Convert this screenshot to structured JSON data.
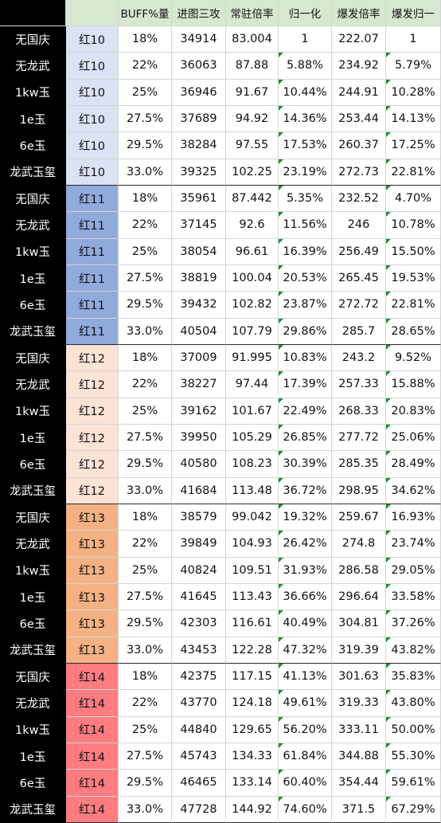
{
  "headers": [
    "",
    "",
    "BUFF%量",
    "进图三攻",
    "常驻倍率",
    "归一化",
    "爆发倍率",
    "爆发归一"
  ],
  "tier_colors": {
    "红10": "#dae2f3",
    "红11": "#8faadb",
    "红12": "#fbe3d6",
    "红13": "#f4b183",
    "红14": "#ff7c80"
  },
  "header_color": "#d6e9cf",
  "rows": [
    {
      "label": "无国庆",
      "tier": "红10",
      "buff": "18%",
      "atk": "34914",
      "base": "83.004",
      "norm": "1",
      "burst": "222.07",
      "burst_norm": "1"
    },
    {
      "label": "无龙武",
      "tier": "红10",
      "buff": "22%",
      "atk": "36063",
      "base": "87.88",
      "norm": "5.88%",
      "burst": "234.92",
      "burst_norm": "5.79%"
    },
    {
      "label": "1kw玉",
      "tier": "红10",
      "buff": "25%",
      "atk": "36946",
      "base": "91.67",
      "norm": "10.44%",
      "burst": "244.91",
      "burst_norm": "10.28%"
    },
    {
      "label": "1e玉",
      "tier": "红10",
      "buff": "27.5%",
      "atk": "37689",
      "base": "94.92",
      "norm": "14.36%",
      "burst": "253.44",
      "burst_norm": "14.13%"
    },
    {
      "label": "6e玉",
      "tier": "红10",
      "buff": "29.5%",
      "atk": "38284",
      "base": "97.55",
      "norm": "17.53%",
      "burst": "260.37",
      "burst_norm": "17.25%"
    },
    {
      "label": "龙武玉玺",
      "tier": "红10",
      "buff": "33.0%",
      "atk": "39325",
      "base": "102.25",
      "norm": "23.19%",
      "burst": "272.73",
      "burst_norm": "22.81%"
    },
    {
      "label": "无国庆",
      "tier": "红11",
      "buff": "18%",
      "atk": "35961",
      "base": "87.442",
      "norm": "5.35%",
      "burst": "232.52",
      "burst_norm": "4.70%"
    },
    {
      "label": "无龙武",
      "tier": "红11",
      "buff": "22%",
      "atk": "37145",
      "base": "92.6",
      "norm": "11.56%",
      "burst": "246",
      "burst_norm": "10.78%"
    },
    {
      "label": "1kw玉",
      "tier": "红11",
      "buff": "25%",
      "atk": "38054",
      "base": "96.61",
      "norm": "16.39%",
      "burst": "256.49",
      "burst_norm": "15.50%"
    },
    {
      "label": "1e玉",
      "tier": "红11",
      "buff": "27.5%",
      "atk": "38819",
      "base": "100.04",
      "norm": "20.53%",
      "burst": "265.45",
      "burst_norm": "19.53%"
    },
    {
      "label": "6e玉",
      "tier": "红11",
      "buff": "29.5%",
      "atk": "39432",
      "base": "102.82",
      "norm": "23.87%",
      "burst": "272.72",
      "burst_norm": "22.81%"
    },
    {
      "label": "龙武玉玺",
      "tier": "红11",
      "buff": "33.0%",
      "atk": "40504",
      "base": "107.79",
      "norm": "29.86%",
      "burst": "285.7",
      "burst_norm": "28.65%"
    },
    {
      "label": "无国庆",
      "tier": "红12",
      "buff": "18%",
      "atk": "37009",
      "base": "91.995",
      "norm": "10.83%",
      "burst": "243.2",
      "burst_norm": "9.52%"
    },
    {
      "label": "无龙武",
      "tier": "红12",
      "buff": "22%",
      "atk": "38227",
      "base": "97.44",
      "norm": "17.39%",
      "burst": "257.33",
      "burst_norm": "15.88%"
    },
    {
      "label": "1kw玉",
      "tier": "红12",
      "buff": "25%",
      "atk": "39162",
      "base": "101.67",
      "norm": "22.49%",
      "burst": "268.33",
      "burst_norm": "20.83%"
    },
    {
      "label": "1e玉",
      "tier": "红12",
      "buff": "27.5%",
      "atk": "39950",
      "base": "105.29",
      "norm": "26.85%",
      "burst": "277.72",
      "burst_norm": "25.06%"
    },
    {
      "label": "6e玉",
      "tier": "红12",
      "buff": "29.5%",
      "atk": "40580",
      "base": "108.23",
      "norm": "30.39%",
      "burst": "285.35",
      "burst_norm": "28.49%"
    },
    {
      "label": "龙武玉玺",
      "tier": "红12",
      "buff": "33.0%",
      "atk": "41684",
      "base": "113.48",
      "norm": "36.72%",
      "burst": "298.95",
      "burst_norm": "34.62%"
    },
    {
      "label": "无国庆",
      "tier": "红13",
      "buff": "18%",
      "atk": "38579",
      "base": "99.042",
      "norm": "19.32%",
      "burst": "259.67",
      "burst_norm": "16.93%"
    },
    {
      "label": "无龙武",
      "tier": "红13",
      "buff": "22%",
      "atk": "39849",
      "base": "104.93",
      "norm": "26.42%",
      "burst": "274.8",
      "burst_norm": "23.74%"
    },
    {
      "label": "1kw玉",
      "tier": "红13",
      "buff": "25%",
      "atk": "40824",
      "base": "109.51",
      "norm": "31.93%",
      "burst": "286.58",
      "burst_norm": "29.05%"
    },
    {
      "label": "1e玉",
      "tier": "红13",
      "buff": "27.5%",
      "atk": "41645",
      "base": "113.43",
      "norm": "36.66%",
      "burst": "296.64",
      "burst_norm": "33.58%"
    },
    {
      "label": "6e玉",
      "tier": "红13",
      "buff": "29.5%",
      "atk": "42303",
      "base": "116.61",
      "norm": "40.49%",
      "burst": "304.81",
      "burst_norm": "37.26%"
    },
    {
      "label": "龙武玉玺",
      "tier": "红13",
      "buff": "33.0%",
      "atk": "43453",
      "base": "122.28",
      "norm": "47.32%",
      "burst": "319.39",
      "burst_norm": "43.82%"
    },
    {
      "label": "无国庆",
      "tier": "红14",
      "buff": "18%",
      "atk": "42375",
      "base": "117.15",
      "norm": "41.13%",
      "burst": "301.63",
      "burst_norm": "35.83%"
    },
    {
      "label": "无龙武",
      "tier": "红14",
      "buff": "22%",
      "atk": "43770",
      "base": "124.18",
      "norm": "49.61%",
      "burst": "319.33",
      "burst_norm": "43.80%"
    },
    {
      "label": "1kw玉",
      "tier": "红14",
      "buff": "25%",
      "atk": "44840",
      "base": "129.65",
      "norm": "56.20%",
      "burst": "333.11",
      "burst_norm": "50.00%"
    },
    {
      "label": "1e玉",
      "tier": "红14",
      "buff": "27.5%",
      "atk": "45743",
      "base": "134.33",
      "norm": "61.84%",
      "burst": "344.88",
      "burst_norm": "55.30%"
    },
    {
      "label": "6e玉",
      "tier": "红14",
      "buff": "29.5%",
      "atk": "46465",
      "base": "133.14",
      "norm": "60.40%",
      "burst": "354.44",
      "burst_norm": "59.61%"
    },
    {
      "label": "龙武玉玺",
      "tier": "红14",
      "buff": "33.0%",
      "atk": "47728",
      "base": "144.92",
      "norm": "74.60%",
      "burst": "371.5",
      "burst_norm": "67.29%"
    }
  ]
}
